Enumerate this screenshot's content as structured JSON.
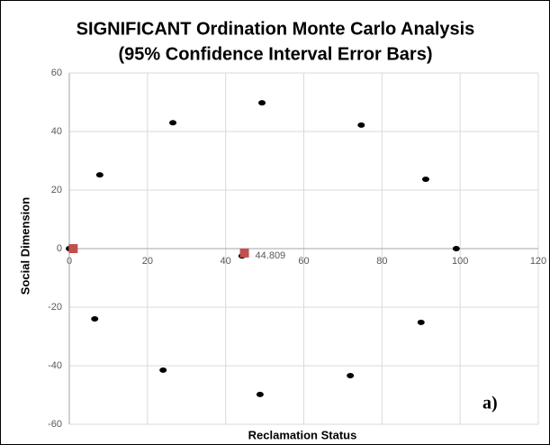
{
  "chart_data": {
    "type": "scatter",
    "title": [
      "SIGNIFICANT Ordination Monte Carlo Analysis",
      "(95% Confidence Interval Error Bars)"
    ],
    "xlabel": "Reclamation Status",
    "ylabel": "Social Dimension",
    "xlim": [
      0,
      120
    ],
    "xticks": [
      0,
      20,
      40,
      60,
      80,
      100,
      120
    ],
    "ylim": [
      -60,
      60
    ],
    "yticks": [
      -60,
      -40,
      -20,
      0,
      20,
      40,
      60
    ],
    "grid": true,
    "series": [
      {
        "color": "#000000",
        "marker": "circle",
        "x": [
          0,
          7.8,
          26.5,
          49.3,
          74.7,
          91.2,
          99,
          90,
          71.9,
          48.8,
          24,
          6.5,
          44.2
        ],
        "values": [
          0,
          25.2,
          43,
          49.8,
          42.2,
          23.7,
          0,
          -25.2,
          -43.4,
          -49.8,
          -41.5,
          -24,
          -2.5
        ]
      },
      {
        "color": "#c0504d",
        "marker": "square",
        "x": [
          1,
          44.809
        ],
        "values": [
          0,
          -1.5
        ]
      }
    ],
    "annotations": [
      "a)"
    ]
  }
}
